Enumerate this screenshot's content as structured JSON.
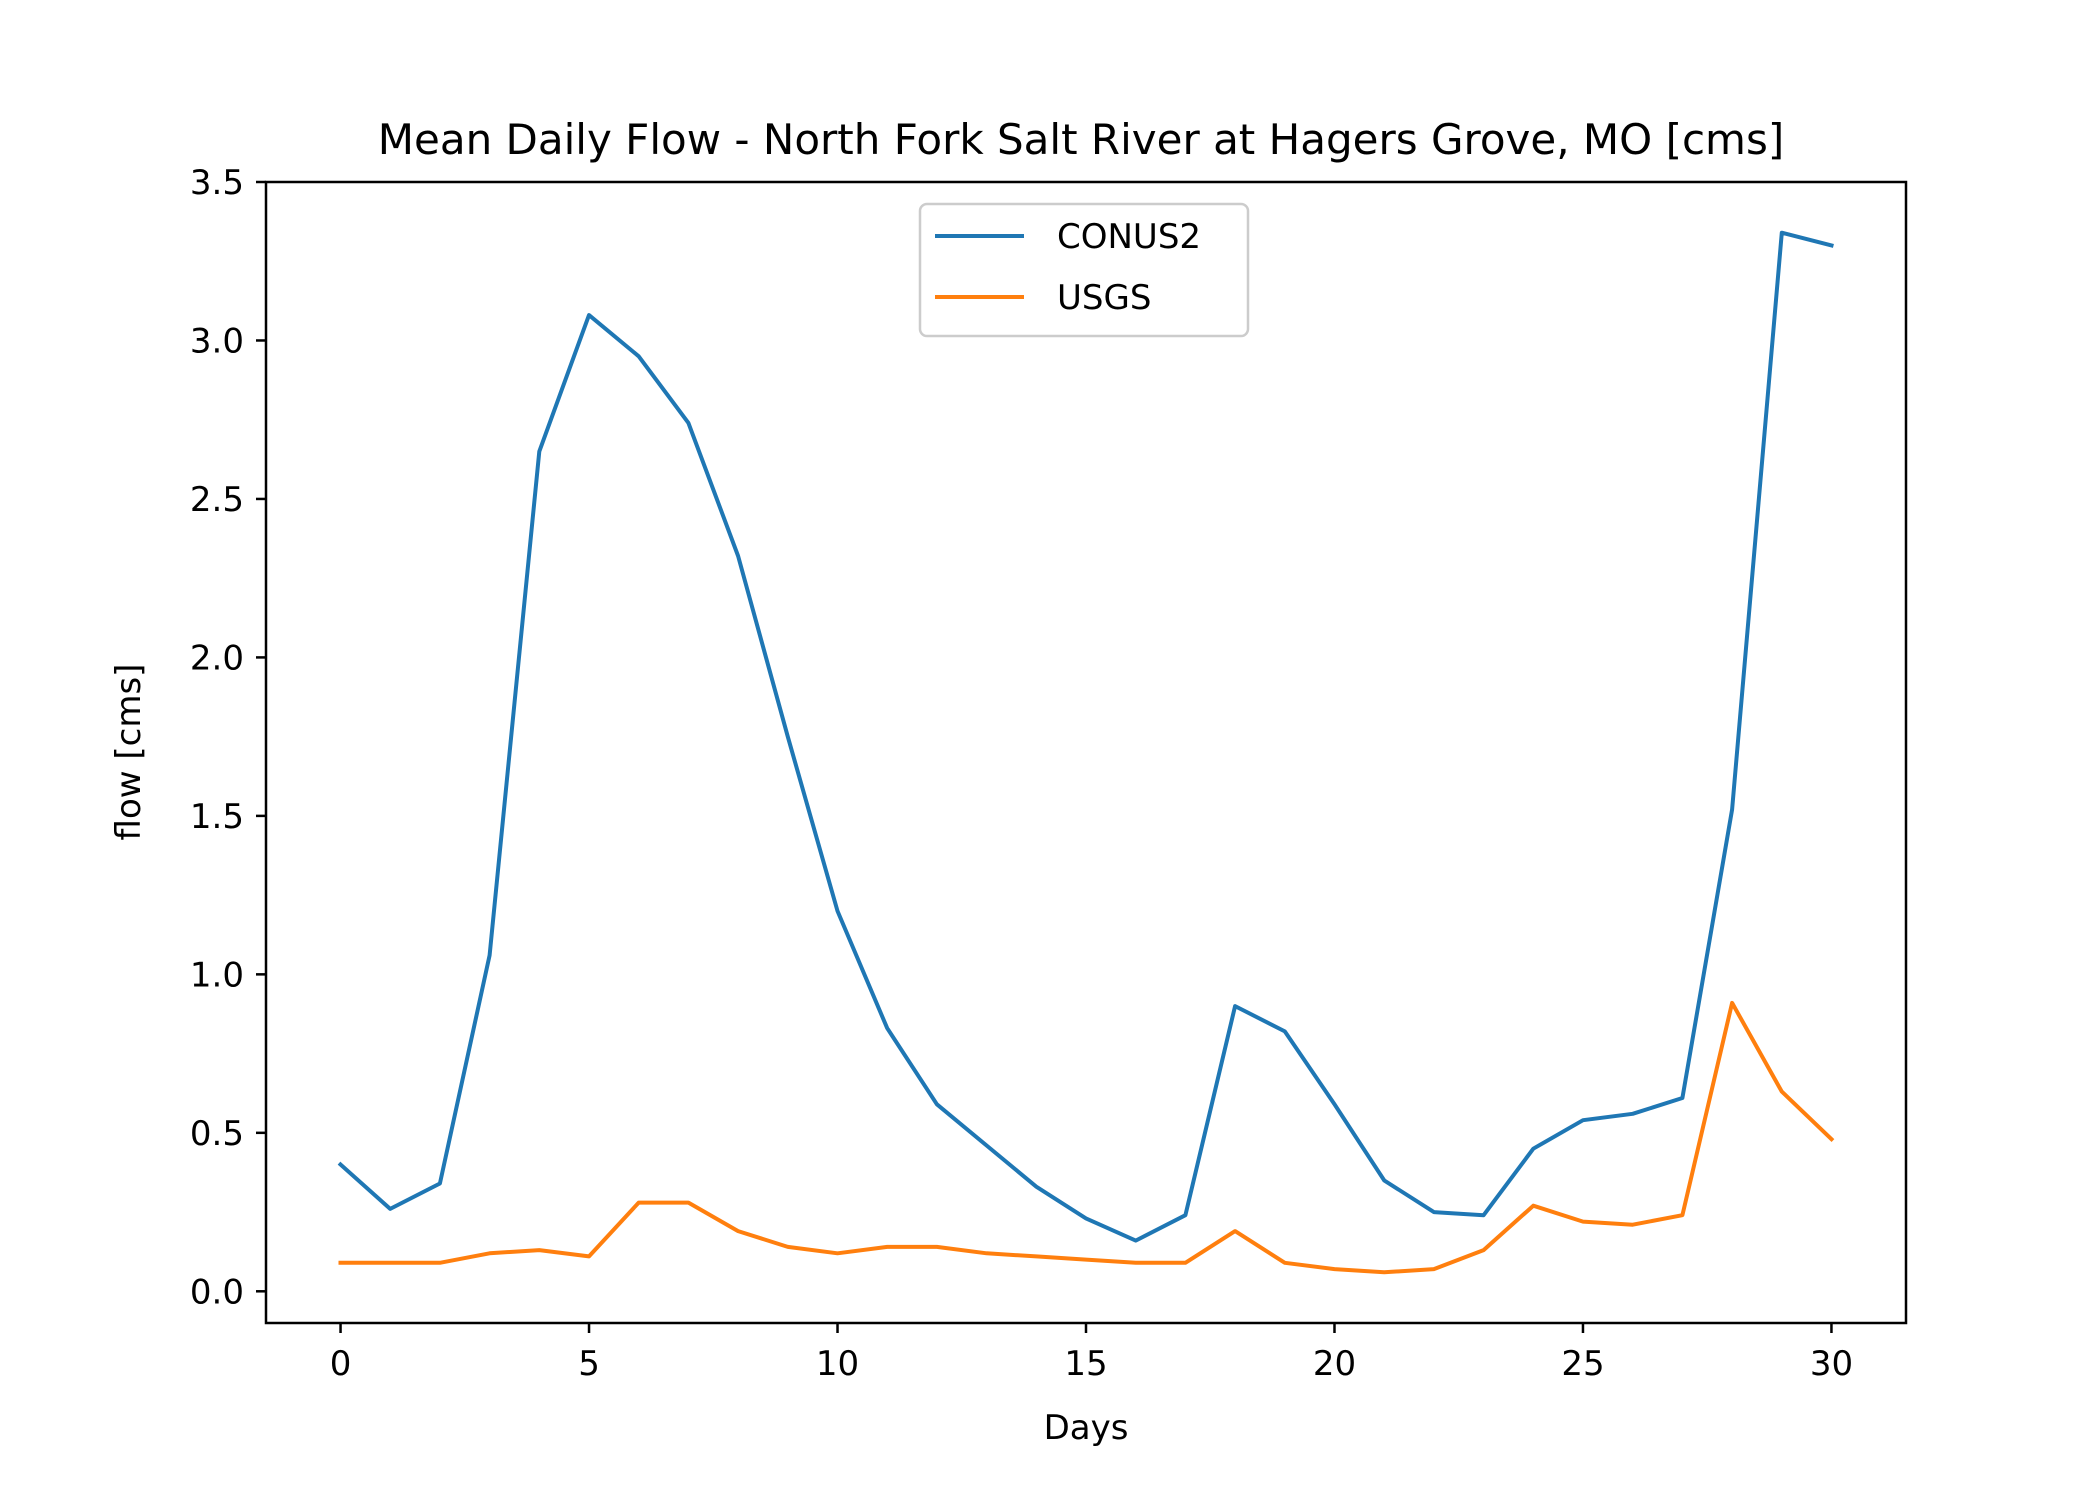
{
  "chart_data": {
    "type": "line",
    "title": "Mean Daily Flow - North Fork Salt River at Hagers Grove, MO [cms]",
    "xlabel": "Days",
    "ylabel": "flow [cms]",
    "xlim": [
      -1.5,
      31.5
    ],
    "ylim": [
      -0.1,
      3.5
    ],
    "xticks": [
      0,
      5,
      10,
      15,
      20,
      25,
      30
    ],
    "xtick_labels": [
      "0",
      "5",
      "10",
      "15",
      "20",
      "25",
      "30"
    ],
    "yticks": [
      0.0,
      0.5,
      1.0,
      1.5,
      2.0,
      2.5,
      3.0,
      3.5
    ],
    "ytick_labels": [
      "0.0",
      "0.5",
      "1.0",
      "1.5",
      "2.0",
      "2.5",
      "3.0",
      "3.5"
    ],
    "grid": false,
    "legend_position": "top-center",
    "x": [
      0,
      1,
      2,
      3,
      4,
      5,
      6,
      7,
      8,
      9,
      10,
      11,
      12,
      13,
      14,
      15,
      16,
      17,
      18,
      19,
      20,
      21,
      22,
      23,
      24,
      25,
      26,
      27,
      28,
      29,
      30
    ],
    "series": [
      {
        "name": "CONUS2",
        "color": "#1f77b4",
        "values": [
          0.4,
          0.26,
          0.34,
          1.06,
          2.65,
          3.08,
          2.95,
          2.74,
          2.32,
          1.75,
          1.2,
          0.83,
          0.59,
          0.46,
          0.33,
          0.23,
          0.16,
          0.24,
          0.9,
          0.82,
          0.59,
          0.35,
          0.25,
          0.24,
          0.45,
          0.54,
          0.56,
          0.61,
          1.52,
          3.34,
          3.3
        ]
      },
      {
        "name": "USGS",
        "color": "#ff7f0e",
        "values": [
          0.09,
          0.09,
          0.09,
          0.12,
          0.13,
          0.11,
          0.28,
          0.28,
          0.19,
          0.14,
          0.12,
          0.14,
          0.14,
          0.12,
          0.11,
          0.1,
          0.09,
          0.09,
          0.19,
          0.09,
          0.07,
          0.06,
          0.07,
          0.13,
          0.27,
          0.22,
          0.21,
          0.24,
          0.91,
          0.63,
          0.48
        ]
      }
    ]
  }
}
